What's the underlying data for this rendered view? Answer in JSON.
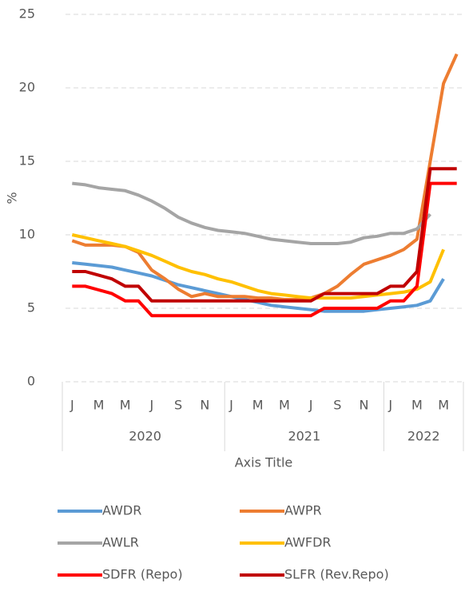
{
  "chart_data": {
    "type": "line",
    "x_axis_title": "Axis Title",
    "y_axis_title": "%",
    "categories": [
      "J",
      null,
      "M",
      null,
      "M",
      null,
      "J",
      null,
      "S",
      null,
      "N",
      null,
      "J",
      null,
      "M",
      null,
      "M",
      null,
      "J",
      null,
      "S",
      null,
      "N",
      null,
      "J",
      null,
      "M",
      null,
      "M",
      null
    ],
    "groups": [
      {
        "label": "2020",
        "count": 12
      },
      {
        "label": "2021",
        "count": 12
      },
      {
        "label": "2022",
        "count": 6
      }
    ],
    "ylim": [
      0,
      25
    ],
    "yticks": [
      0,
      5,
      10,
      15,
      20,
      25
    ],
    "grid": true,
    "legend": "bottom",
    "series": [
      {
        "name": "AWDR",
        "color": "#5b9bd5",
        "values": [
          8.1,
          8.0,
          7.9,
          7.8,
          7.6,
          7.4,
          7.2,
          6.9,
          6.6,
          6.4,
          6.2,
          6.0,
          5.8,
          5.6,
          5.4,
          5.2,
          5.1,
          5.0,
          4.9,
          4.8,
          4.8,
          4.8,
          4.8,
          4.9,
          5.0,
          5.1,
          5.2,
          5.5,
          7.0,
          null
        ]
      },
      {
        "name": "AWPR",
        "color": "#ed7d31",
        "values": [
          9.6,
          9.3,
          9.3,
          9.3,
          9.2,
          8.8,
          7.6,
          7.0,
          6.3,
          5.8,
          6.0,
          5.8,
          5.8,
          5.8,
          5.7,
          5.7,
          5.6,
          5.6,
          5.7,
          6.0,
          6.5,
          7.3,
          8.0,
          8.3,
          8.6,
          9.0,
          9.7,
          15.0,
          20.3,
          22.3
        ]
      },
      {
        "name": "AWLR",
        "color": "#a5a5a5",
        "values": [
          13.5,
          13.4,
          13.2,
          13.1,
          13.0,
          12.7,
          12.3,
          11.8,
          11.2,
          10.8,
          10.5,
          10.3,
          10.2,
          10.1,
          9.9,
          9.7,
          9.6,
          9.5,
          9.4,
          9.4,
          9.4,
          9.5,
          9.8,
          9.9,
          10.1,
          10.1,
          10.4,
          11.4,
          null,
          null
        ]
      },
      {
        "name": "AWFDR",
        "color": "#ffc000",
        "values": [
          10.0,
          9.8,
          9.6,
          9.4,
          9.2,
          8.9,
          8.6,
          8.2,
          7.8,
          7.5,
          7.3,
          7.0,
          6.8,
          6.5,
          6.2,
          6.0,
          5.9,
          5.8,
          5.7,
          5.7,
          5.7,
          5.7,
          5.8,
          5.9,
          6.0,
          6.1,
          6.3,
          6.8,
          9.0,
          null
        ]
      },
      {
        "name": "SDFR (Repo)",
        "color": "#ff0000",
        "values": [
          6.5,
          6.5,
          6.25,
          6.0,
          5.5,
          5.5,
          4.5,
          4.5,
          4.5,
          4.5,
          4.5,
          4.5,
          4.5,
          4.5,
          4.5,
          4.5,
          4.5,
          4.5,
          4.5,
          5.0,
          5.0,
          5.0,
          5.0,
          5.0,
          5.5,
          5.5,
          6.5,
          13.5,
          13.5,
          13.5
        ]
      },
      {
        "name": "SLFR (Rev.Repo)",
        "color": "#c00000",
        "values": [
          7.5,
          7.5,
          7.25,
          7.0,
          6.5,
          6.5,
          5.5,
          5.5,
          5.5,
          5.5,
          5.5,
          5.5,
          5.5,
          5.5,
          5.5,
          5.5,
          5.5,
          5.5,
          5.5,
          6.0,
          6.0,
          6.0,
          6.0,
          6.0,
          6.5,
          6.5,
          7.5,
          14.5,
          14.5,
          14.5
        ]
      }
    ]
  }
}
